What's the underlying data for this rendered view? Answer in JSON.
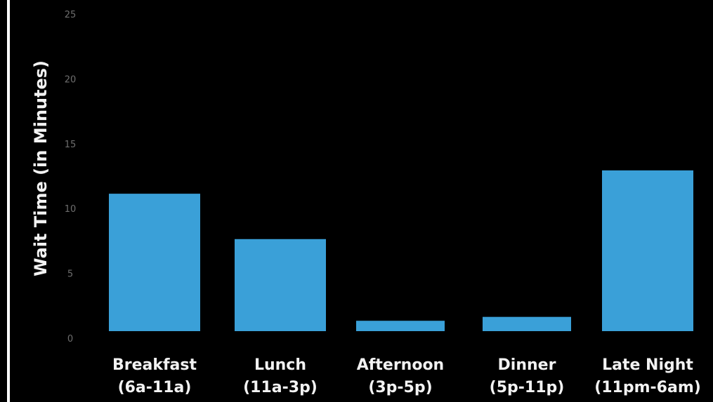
{
  "chart_data": {
    "type": "bar",
    "title": "",
    "xlabel": "",
    "ylabel": "Wait Time (in Minutes)",
    "ylim": [
      0,
      25
    ],
    "yticks": [
      "0",
      "5",
      "10",
      "15",
      "20",
      "25"
    ],
    "grid": false,
    "categories": [
      {
        "name": "Breakfast",
        "range": "(6a-11a)"
      },
      {
        "name": "Lunch",
        "range": "(11a-3p)"
      },
      {
        "name": "Afternoon",
        "range": "(3p-5p)"
      },
      {
        "name": "Dinner",
        "range": "(5p-11p)"
      },
      {
        "name": "Late Night",
        "range": "(11pm-6am)"
      }
    ],
    "values": [
      10.6,
      7.1,
      0.8,
      1.1,
      12.4
    ]
  },
  "colors": {
    "bar": "#3aa0d8",
    "background": "#000000",
    "axis": "#ffffff",
    "text": "#f2f2f2",
    "tick": "#6e6e6e"
  }
}
